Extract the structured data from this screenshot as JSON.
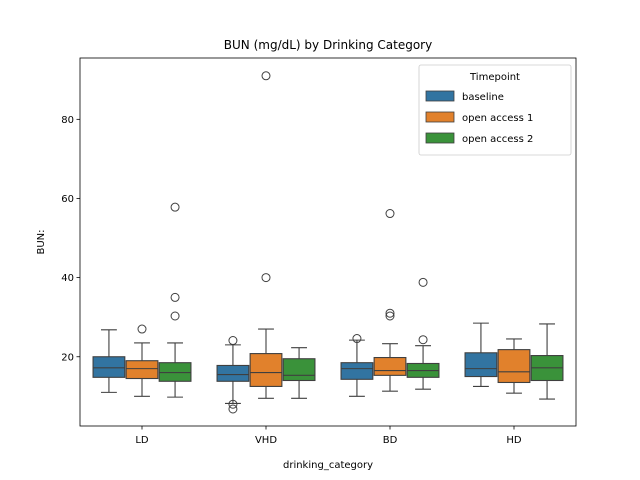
{
  "chart_data": {
    "type": "box",
    "title": "BUN (mg/dL) by Drinking Category",
    "xlabel": "drinking_category",
    "ylabel": "BUN:",
    "ylim": [
      2.5,
      95.5
    ],
    "yticks": [
      20,
      40,
      60,
      80
    ],
    "grid": false,
    "categories": [
      "LD",
      "VHD",
      "BD",
      "HD"
    ],
    "legend": {
      "title": "Timepoint",
      "placement": "upper right"
    },
    "series": [
      {
        "name": "baseline",
        "color": "#3274a1",
        "boxes": [
          {
            "whisker_low": 11,
            "q1": 14.8,
            "median": 17.2,
            "q3": 20.0,
            "whisker_high": 26.8,
            "outliers": []
          },
          {
            "whisker_low": 8.2,
            "q1": 13.8,
            "median": 15.5,
            "q3": 17.8,
            "whisker_high": 23.0,
            "outliers": [
              24.1,
              8.0,
              6.8
            ]
          },
          {
            "whisker_low": 10.0,
            "q1": 14.3,
            "median": 17.0,
            "q3": 18.5,
            "whisker_high": 24.2,
            "outliers": [
              24.6
            ]
          },
          {
            "whisker_low": 12.5,
            "q1": 15.0,
            "median": 17.0,
            "q3": 21.0,
            "whisker_high": 28.5,
            "outliers": []
          }
        ]
      },
      {
        "name": "open access 1",
        "color": "#e1812c",
        "boxes": [
          {
            "whisker_low": 10.0,
            "q1": 14.5,
            "median": 17.0,
            "q3": 19.0,
            "whisker_high": 23.5,
            "outliers": [
              27.0
            ]
          },
          {
            "whisker_low": 9.5,
            "q1": 12.5,
            "median": 16.0,
            "q3": 20.8,
            "whisker_high": 27.0,
            "outliers": [
              91.0,
              40.0
            ]
          },
          {
            "whisker_low": 11.3,
            "q1": 15.3,
            "median": 16.5,
            "q3": 19.8,
            "whisker_high": 23.3,
            "outliers": [
              56.2,
              31.0,
              30.3
            ]
          },
          {
            "whisker_low": 10.8,
            "q1": 13.5,
            "median": 16.2,
            "q3": 21.8,
            "whisker_high": 24.5,
            "outliers": []
          }
        ]
      },
      {
        "name": "open access 2",
        "color": "#3a923a",
        "boxes": [
          {
            "whisker_low": 9.8,
            "q1": 13.8,
            "median": 16.0,
            "q3": 18.5,
            "whisker_high": 23.5,
            "outliers": [
              57.8,
              35.0,
              30.3
            ]
          },
          {
            "whisker_low": 9.5,
            "q1": 14.0,
            "median": 15.3,
            "q3": 19.5,
            "whisker_high": 22.3,
            "outliers": []
          },
          {
            "whisker_low": 11.8,
            "q1": 14.8,
            "median": 16.5,
            "q3": 18.3,
            "whisker_high": 22.8,
            "outliers": [
              38.8,
              24.3
            ]
          },
          {
            "whisker_low": 9.3,
            "q1": 14.0,
            "median": 17.2,
            "q3": 20.3,
            "whisker_high": 28.3,
            "outliers": []
          }
        ]
      }
    ]
  }
}
